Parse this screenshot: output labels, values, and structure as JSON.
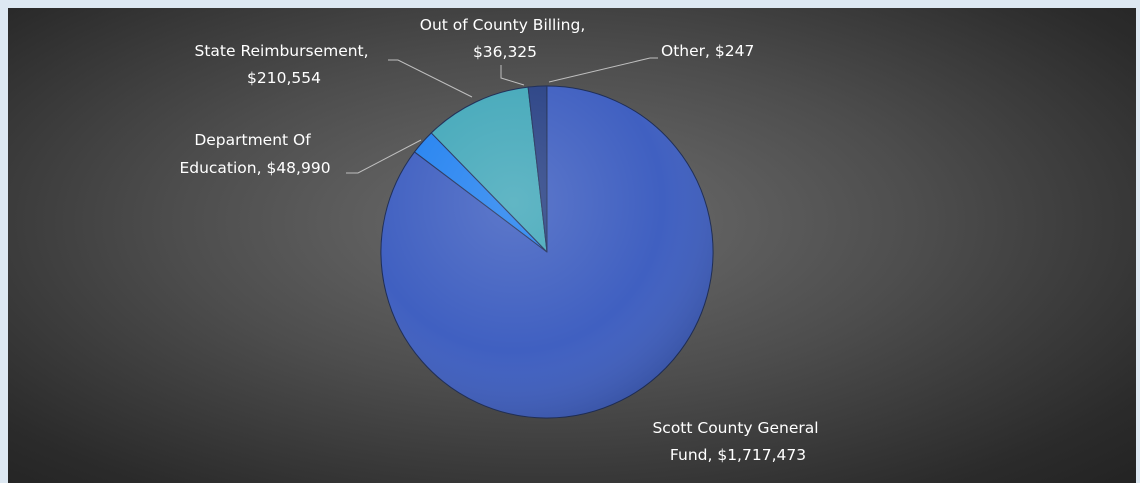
{
  "chart_data": {
    "type": "pie",
    "title": "",
    "slices": [
      {
        "name": "Scott County General Fund",
        "value": 1717473,
        "label_line1": "Scott County General",
        "label_line2": "Fund, $1,717,473",
        "color": "#3a5bbf"
      },
      {
        "name": "Department Of Education",
        "value": 48990,
        "label_line1": "Department Of",
        "label_line2": "Education, $48,990",
        "color": "#1e7ff0"
      },
      {
        "name": "State Reimbursement",
        "value": 210554,
        "label_line1": "State Reimbursement,",
        "label_line2": "$210,554",
        "color": "#3fa6b8"
      },
      {
        "name": "Out of County Billing",
        "value": 36325,
        "label_line1": "Out of County Billing,",
        "label_line2": "$36,325",
        "color": "#243d82"
      },
      {
        "name": "Other",
        "value": 247,
        "label_line1": "Other, $247",
        "label_line2": "",
        "color": "#5aa0e8"
      }
    ],
    "start_angle_deg": 0,
    "direction": "clockwise",
    "legend": "none"
  }
}
